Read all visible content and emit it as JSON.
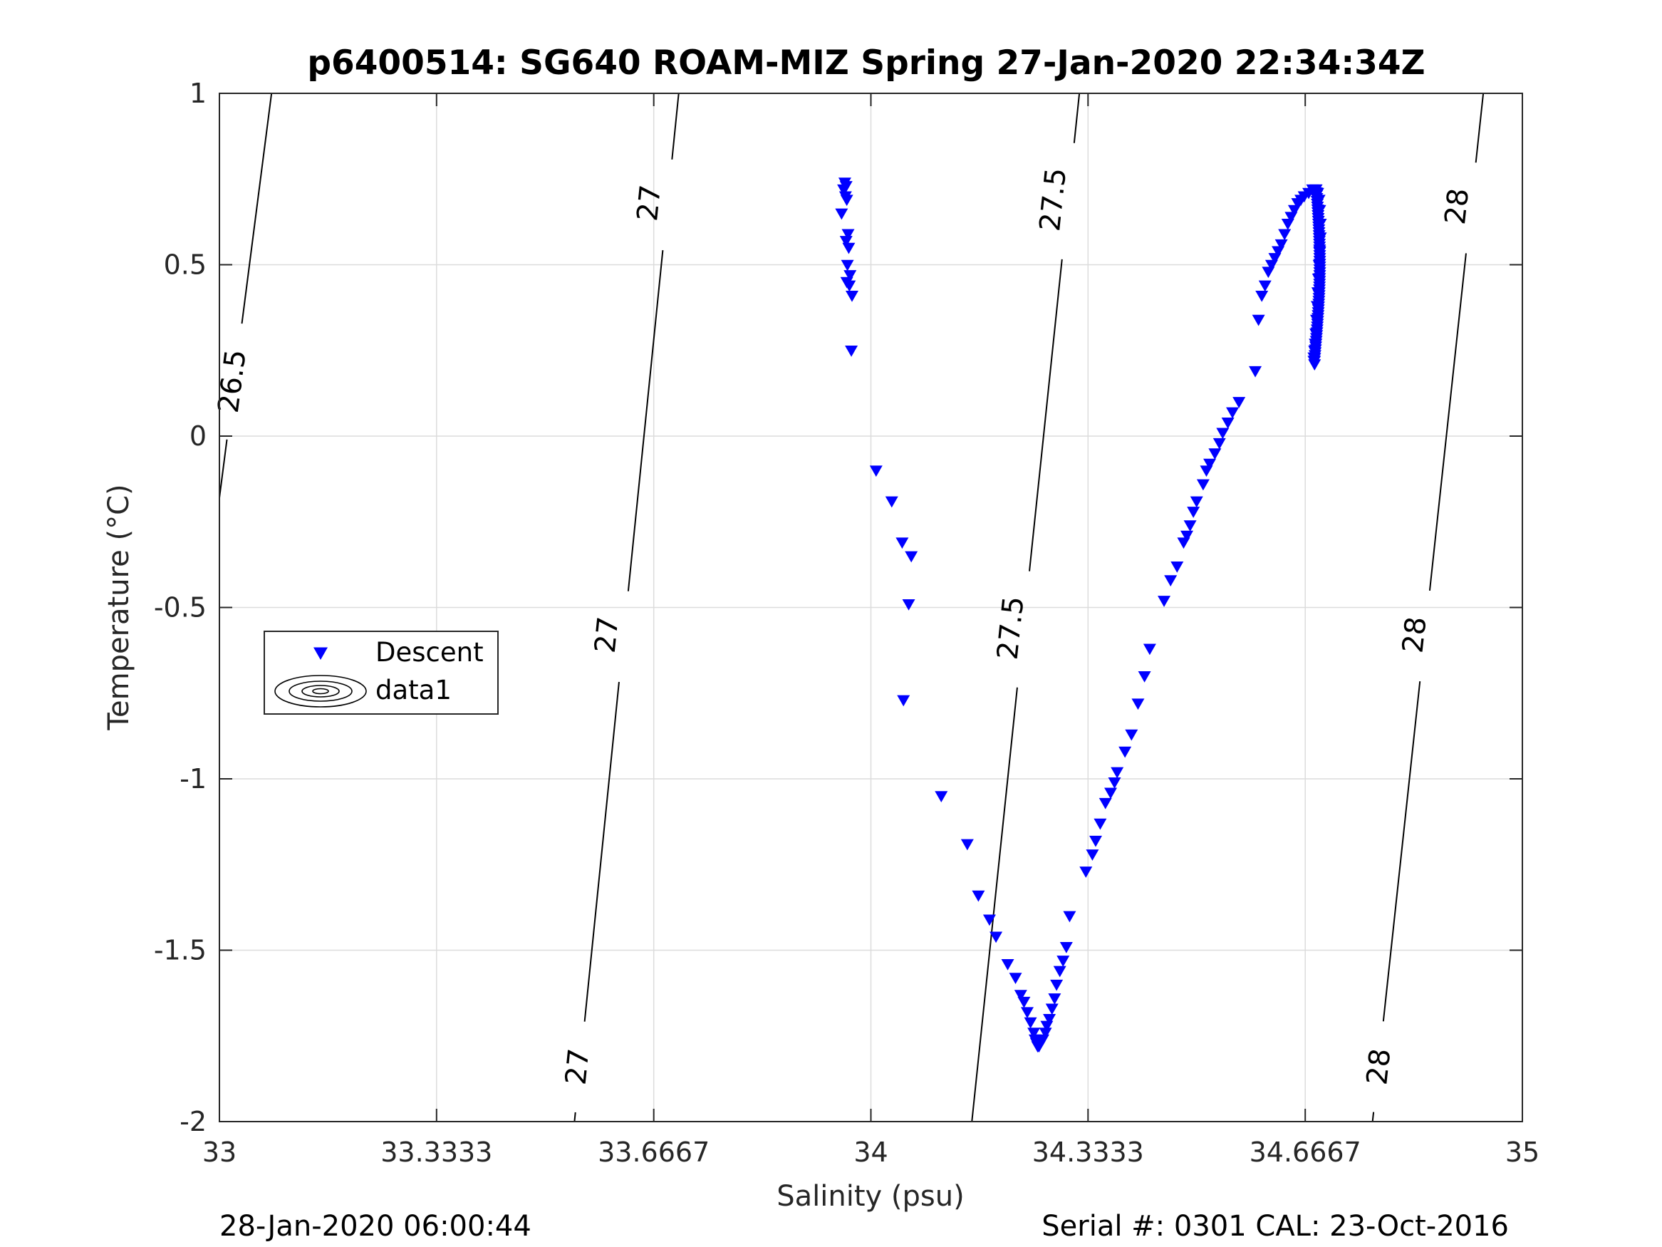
{
  "title": "p6400514: SG640 ROAM-MIZ Spring 27-Jan-2020 22:34:34Z",
  "footer_left": "28-Jan-2020 06:00:44",
  "footer_right": "Serial #: 0301  CAL: 23-Oct-2016",
  "colors": {
    "descent": "#0000ff",
    "contour": "#000000",
    "grid": "#dcdcdc",
    "axis": "#262626"
  },
  "chart_data": {
    "type": "scatter",
    "title": "p6400514: SG640 ROAM-MIZ Spring 27-Jan-2020 22:34:34Z",
    "xlabel": "Salinity (psu)",
    "ylabel": "Temperature (°C)",
    "xlim": [
      33,
      35
    ],
    "ylim": [
      -2,
      1
    ],
    "grid": true,
    "x_ticks": [
      33,
      33.3333,
      33.6667,
      34,
      34.3333,
      34.6667,
      35
    ],
    "x_tick_labels": [
      "33",
      "33.3333",
      "33.6667",
      "34",
      "34.3333",
      "34.6667",
      "35"
    ],
    "y_ticks": [
      1,
      0.5,
      0,
      -0.5,
      -1,
      -1.5,
      -2
    ],
    "y_tick_labels": [
      "1",
      "0.5",
      "0",
      "-0.5",
      "-1",
      "-1.5",
      "-2"
    ],
    "legend": {
      "placement": "west",
      "entries": [
        "Descent",
        "data1"
      ]
    },
    "density_contours": [
      {
        "level": "26.5",
        "line": [
          [
            33.0,
            -0.18
          ],
          [
            33.08,
            1.0
          ]
        ],
        "labels": [
          {
            "text": "26.5",
            "x": 33.02,
            "y": 0.16
          }
        ]
      },
      {
        "level": "27",
        "line": [
          [
            33.545,
            -2.0
          ],
          [
            33.705,
            1.0
          ]
        ],
        "labels": [
          {
            "text": "27",
            "x": 33.66,
            "y": 0.68
          },
          {
            "text": "27",
            "x": 33.595,
            "y": -0.58
          },
          {
            "text": "27",
            "x": 33.55,
            "y": -1.84
          }
        ]
      },
      {
        "level": "27.5",
        "line": [
          [
            34.155,
            -2.0
          ],
          [
            34.32,
            1.0
          ]
        ],
        "labels": [
          {
            "text": "27.5",
            "x": 34.28,
            "y": 0.69
          },
          {
            "text": "27.5",
            "x": 34.215,
            "y": -0.56
          }
        ]
      },
      {
        "level": "28",
        "line": [
          [
            34.77,
            -2.0
          ],
          [
            34.94,
            1.0
          ]
        ],
        "labels": [
          {
            "text": "28",
            "x": 34.9,
            "y": 0.67
          },
          {
            "text": "28",
            "x": 34.835,
            "y": -0.58
          },
          {
            "text": "28",
            "x": 34.78,
            "y": -1.84
          }
        ]
      }
    ],
    "series": [
      {
        "name": "Descent",
        "marker": "triangle-down",
        "x": [
          33.96,
          33.962,
          33.958,
          33.961,
          33.963,
          33.955,
          33.965,
          33.962,
          33.966,
          33.964,
          33.968,
          33.963,
          33.967,
          33.971,
          33.97,
          34.008,
          34.032,
          34.048,
          34.062,
          34.058,
          34.05,
          34.108,
          34.148,
          34.165,
          34.182,
          34.192,
          34.21,
          34.222,
          34.23,
          34.235,
          34.24,
          34.245,
          34.25,
          34.252,
          34.254,
          34.256,
          34.258,
          34.26,
          34.264,
          34.268,
          34.27,
          34.274,
          34.278,
          34.282,
          34.285,
          34.29,
          34.295,
          34.3,
          34.305,
          34.33,
          34.34,
          34.345,
          34.352,
          34.36,
          34.368,
          34.374,
          34.378,
          34.39,
          34.4,
          34.41,
          34.42,
          34.428,
          34.45,
          34.46,
          34.47,
          34.48,
          34.485,
          34.49,
          34.495,
          34.5,
          34.51,
          34.515,
          34.52,
          34.528,
          34.535,
          34.54,
          34.548,
          34.555,
          34.565,
          34.59,
          34.595,
          34.6,
          34.605,
          34.61,
          34.615,
          34.62,
          34.625,
          34.63,
          34.635,
          34.64,
          34.645,
          34.65,
          34.655,
          34.66,
          34.665,
          34.672,
          34.678,
          34.683,
          34.686,
          34.688,
          34.689,
          34.69,
          34.69,
          34.689,
          34.688,
          34.687,
          34.686,
          34.685,
          34.684,
          34.683,
          34.682,
          34.681,
          34.68,
          34.68,
          34.681
        ],
        "y": [
          0.74,
          0.73,
          0.72,
          0.7,
          0.69,
          0.65,
          0.59,
          0.57,
          0.55,
          0.5,
          0.47,
          0.45,
          0.44,
          0.41,
          0.25,
          -0.1,
          -0.19,
          -0.31,
          -0.35,
          -0.49,
          -0.77,
          -1.05,
          -1.19,
          -1.34,
          -1.41,
          -1.46,
          -1.54,
          -1.58,
          -1.63,
          -1.65,
          -1.68,
          -1.71,
          -1.74,
          -1.76,
          -1.77,
          -1.78,
          -1.78,
          -1.77,
          -1.76,
          -1.74,
          -1.72,
          -1.7,
          -1.67,
          -1.64,
          -1.6,
          -1.56,
          -1.53,
          -1.49,
          -1.4,
          -1.27,
          -1.22,
          -1.18,
          -1.13,
          -1.07,
          -1.04,
          -1.01,
          -0.98,
          -0.92,
          -0.87,
          -0.78,
          -0.7,
          -0.62,
          -0.48,
          -0.42,
          -0.38,
          -0.31,
          -0.29,
          -0.26,
          -0.22,
          -0.19,
          -0.14,
          -0.1,
          -0.08,
          -0.05,
          -0.02,
          0.01,
          0.04,
          0.07,
          0.1,
          0.19,
          0.34,
          0.41,
          0.44,
          0.48,
          0.5,
          0.52,
          0.54,
          0.56,
          0.59,
          0.62,
          0.64,
          0.66,
          0.68,
          0.69,
          0.7,
          0.71,
          0.72,
          0.72,
          0.71,
          0.69,
          0.66,
          0.62,
          0.58,
          0.54,
          0.5,
          0.46,
          0.42,
          0.38,
          0.34,
          0.3,
          0.27,
          0.25,
          0.23,
          0.22,
          0.21
        ]
      },
      {
        "name": "data1",
        "marker": "contour-glyph",
        "x": [],
        "y": []
      }
    ]
  }
}
